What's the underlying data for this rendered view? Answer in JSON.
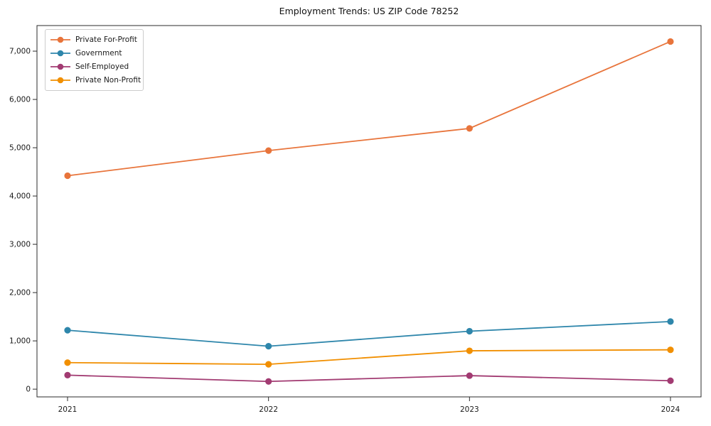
{
  "title": "Employment Trends: US ZIP Code 78252",
  "chart_data": {
    "type": "line",
    "title": "Employment Trends: US ZIP Code 78252",
    "x": [
      2021,
      2022,
      2023,
      2024
    ],
    "x_tick_labels": [
      "2021",
      "2022",
      "2023",
      "2024"
    ],
    "y_ticks": [
      0,
      1000,
      2000,
      3000,
      4000,
      5000,
      6000,
      7000
    ],
    "y_tick_labels": [
      "0",
      "1,000",
      "2,000",
      "3,000",
      "4,000",
      "5,000",
      "6,000",
      "7,000"
    ],
    "ylim": [
      -160,
      7530
    ],
    "grid": false,
    "legend_position": "upper left",
    "marker": "circle",
    "axis_color": "#2b2b2b",
    "series": [
      {
        "name": "Private For-Profit",
        "color": "#E8743B",
        "values": [
          4420,
          4940,
          5400,
          7200
        ]
      },
      {
        "name": "Government",
        "color": "#2E86AB",
        "values": [
          1220,
          890,
          1200,
          1400
        ]
      },
      {
        "name": "Self-Employed",
        "color": "#A23B72",
        "values": [
          290,
          160,
          280,
          175
        ]
      },
      {
        "name": "Private Non-Profit",
        "color": "#F18F01",
        "values": [
          550,
          515,
          795,
          815
        ]
      }
    ]
  }
}
